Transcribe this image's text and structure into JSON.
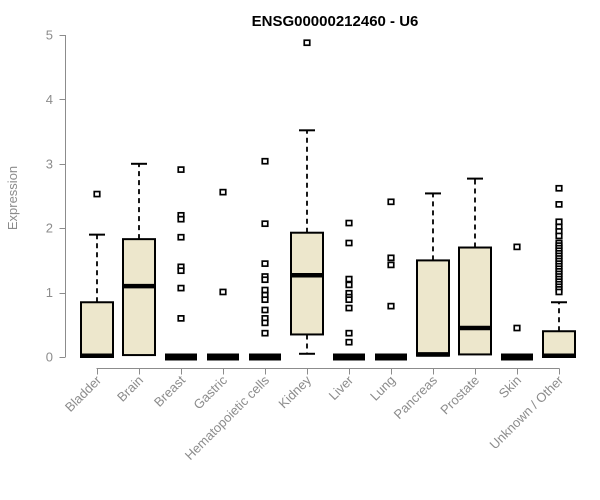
{
  "chart_data": {
    "type": "boxplot",
    "title": "ENSG00000212460 - U6",
    "ylabel": "Expression",
    "xlabel": "",
    "ylim": [
      0,
      5
    ],
    "yticks": [
      0,
      1,
      2,
      3,
      4,
      5
    ],
    "grid": false,
    "legend": false,
    "categories": [
      "Bladder",
      "Brain",
      "Breast",
      "Gastric",
      "Hematopoietic cells",
      "Kidney",
      "Liver",
      "Lung",
      "Pancreas",
      "Prostate",
      "Skin",
      "Unknown / Other"
    ],
    "boxes": [
      {
        "category": "Bladder",
        "q1": 0,
        "median": 0.02,
        "q3": 0.85,
        "whisker_low": 0,
        "whisker_high": 1.9,
        "outliers": [
          2.53
        ]
      },
      {
        "category": "Brain",
        "q1": 0.03,
        "median": 1.1,
        "q3": 1.83,
        "whisker_low": 0.03,
        "whisker_high": 3.0,
        "outliers": []
      },
      {
        "category": "Breast",
        "q1": 0,
        "median": 0,
        "q3": 0,
        "whisker_low": 0,
        "whisker_high": 0,
        "outliers": [
          2.91,
          2.2,
          2.14,
          1.86,
          1.4,
          1.34,
          1.07,
          0.6
        ]
      },
      {
        "category": "Gastric",
        "q1": 0,
        "median": 0,
        "q3": 0,
        "whisker_low": 0,
        "whisker_high": 0,
        "outliers": [
          2.56,
          1.01
        ]
      },
      {
        "category": "Hematopoietic cells",
        "q1": 0,
        "median": 0,
        "q3": 0,
        "whisker_low": 0,
        "whisker_high": 0,
        "outliers": [
          3.04,
          2.07,
          1.45,
          1.25,
          1.2,
          1.04,
          0.96,
          0.89,
          0.73,
          0.6,
          0.53,
          0.37
        ]
      },
      {
        "category": "Kidney",
        "q1": 0.35,
        "median": 1.27,
        "q3": 1.93,
        "whisker_low": 0.05,
        "whisker_high": 3.52,
        "outliers": [
          4.88
        ]
      },
      {
        "category": "Liver",
        "q1": 0,
        "median": 0,
        "q3": 0,
        "whisker_low": 0,
        "whisker_high": 0,
        "outliers": [
          2.08,
          1.77,
          1.21,
          1.12,
          0.99,
          0.93,
          0.89,
          0.76,
          0.37,
          0.23
        ]
      },
      {
        "category": "Lung",
        "q1": 0,
        "median": 0,
        "q3": 0,
        "whisker_low": 0,
        "whisker_high": 0,
        "outliers": [
          2.41,
          1.54,
          1.43,
          0.79
        ]
      },
      {
        "category": "Pancreas",
        "q1": 0.02,
        "median": 0.04,
        "q3": 1.5,
        "whisker_low": 0.02,
        "whisker_high": 2.54,
        "outliers": []
      },
      {
        "category": "Prostate",
        "q1": 0.04,
        "median": 0.45,
        "q3": 1.7,
        "whisker_low": 0.04,
        "whisker_high": 2.77,
        "outliers": []
      },
      {
        "category": "Skin",
        "q1": 0,
        "median": 0,
        "q3": 0,
        "whisker_low": 0,
        "whisker_high": 0,
        "outliers": [
          1.71,
          0.45
        ]
      },
      {
        "category": "Unknown / Other",
        "q1": 0,
        "median": 0.02,
        "q3": 0.4,
        "whisker_low": 0,
        "whisker_high": 0.85,
        "outliers": [
          2.62,
          2.37,
          2.1,
          2.02,
          1.95,
          1.88,
          1.77,
          1.73,
          1.69,
          1.65,
          1.61,
          1.57,
          1.53,
          1.49,
          1.45,
          1.41,
          1.37,
          1.33,
          1.29,
          1.25,
          1.21,
          1.17,
          1.13,
          1.09,
          1.05,
          1.01
        ]
      }
    ],
    "colors": {
      "box_fill": "#EDE7CC",
      "box_stroke": "#000000",
      "median": "#000000",
      "whisker": "#000000",
      "outlier_stroke": "#000000",
      "outlier_fill": "#ffffff",
      "axis": "#8c8c8c",
      "tick_text": "#8c8c8c",
      "title": "#000000",
      "background": "#ffffff"
    }
  }
}
